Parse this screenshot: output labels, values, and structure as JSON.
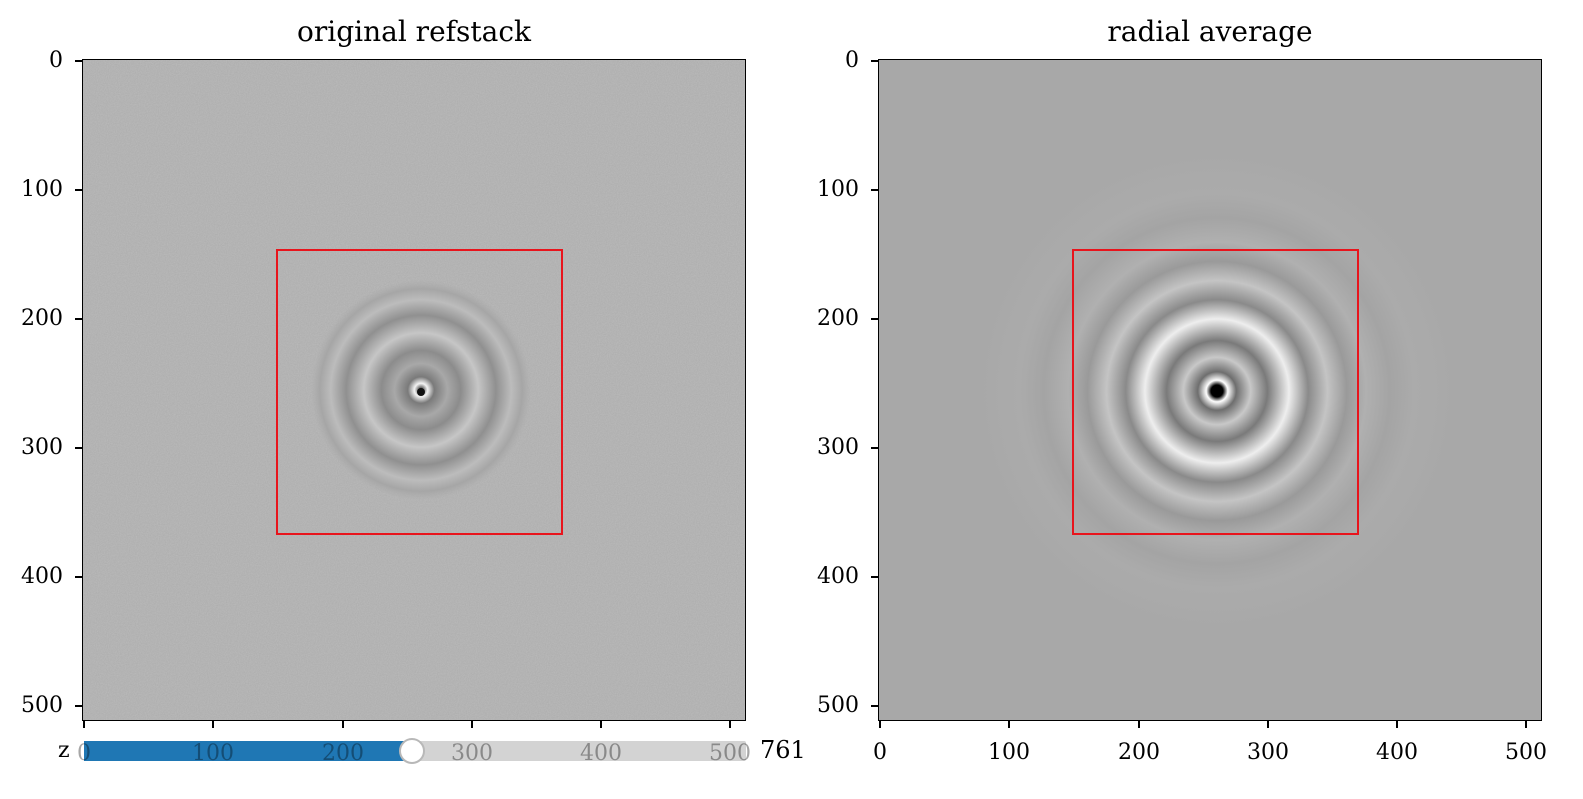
{
  "left_panel": {
    "title": "original refstack",
    "yticks": [
      "0",
      "100",
      "200",
      "300",
      "400",
      "500"
    ],
    "xticks": [
      "0",
      "100",
      "200",
      "300",
      "400",
      "500"
    ]
  },
  "right_panel": {
    "title": "radial average",
    "yticks": [
      "0",
      "100",
      "200",
      "300",
      "400",
      "500"
    ],
    "xticks": [
      "0",
      "100",
      "200",
      "300",
      "400",
      "500"
    ]
  },
  "slider": {
    "label": "z",
    "value": "761",
    "min": 0,
    "max": 1536,
    "current": 761
  },
  "colors": {
    "roi_box": "#e8141c",
    "slider_fill": "#1f77b4",
    "slider_track": "#d3d3d3"
  }
}
